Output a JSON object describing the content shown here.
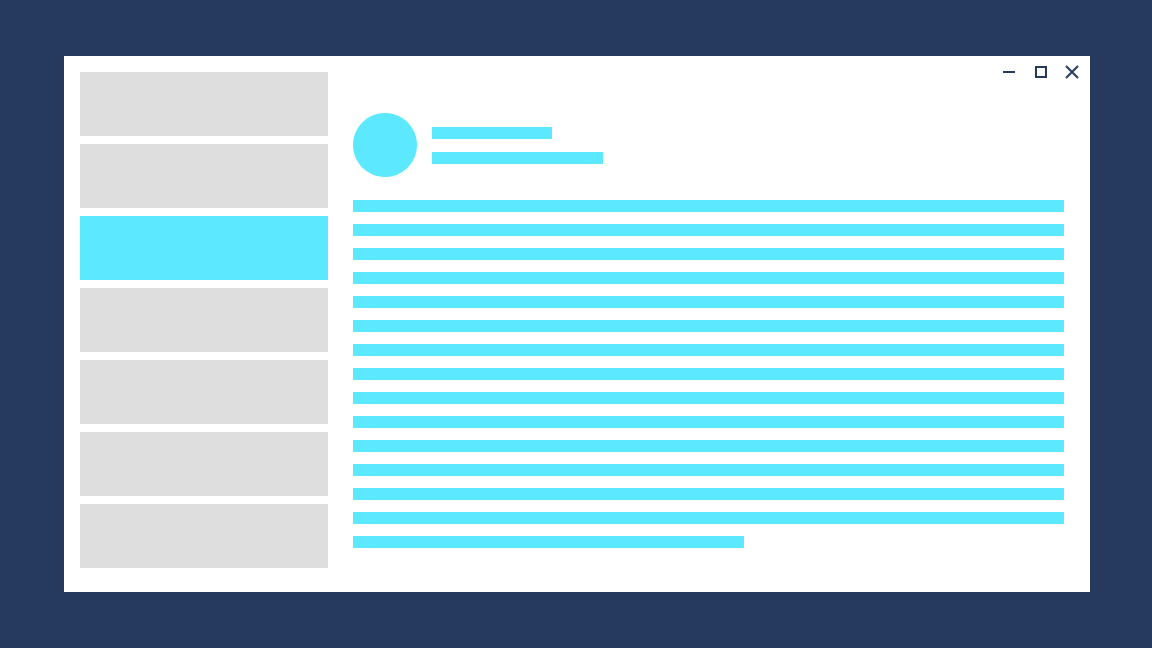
{
  "colors": {
    "background": "#253a5e",
    "accent": "#5ce8ff",
    "placeholder": "#dedede",
    "window": "#ffffff",
    "controls": "#253a5e"
  },
  "window_controls": [
    "minimize-icon",
    "maximize-icon",
    "close-icon"
  ],
  "sidebar": {
    "item_count": 7,
    "active_index": 2
  },
  "content": {
    "line_count": 15,
    "last_line_fraction": 0.55
  }
}
